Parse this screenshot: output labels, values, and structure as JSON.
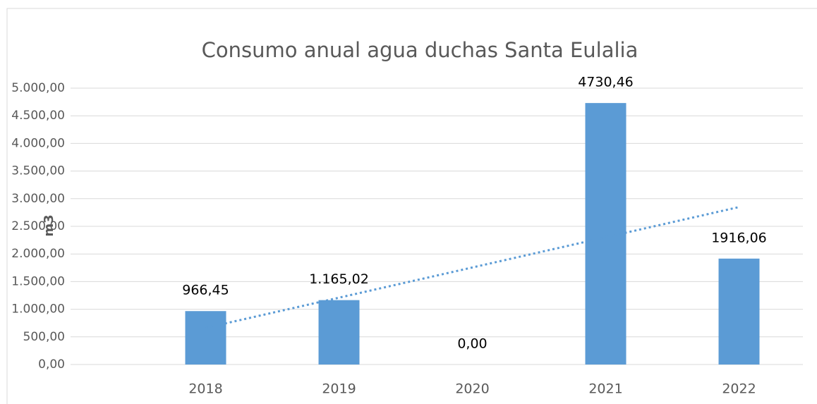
{
  "chart_data": {
    "type": "bar",
    "title": "Consumo anual agua duchas Santa Eulalia",
    "y_label": "m3",
    "categories": [
      "2018",
      "2019",
      "2020",
      "2021",
      "2022"
    ],
    "values": [
      966.45,
      1165.02,
      0,
      4730.46,
      1916.06
    ],
    "value_labels": [
      "966,45",
      "1.165,02",
      "0,00",
      "4730,46",
      "1916,06"
    ],
    "color": "#5b9bd5",
    "trendline": "linear",
    "ylim": [
      0,
      5000
    ],
    "yticks": [
      {
        "value": 0,
        "label": "0,00"
      },
      {
        "value": 500,
        "label": "500,00"
      },
      {
        "value": 1000,
        "label": "1.000,00"
      },
      {
        "value": 1500,
        "label": "1.500,00"
      },
      {
        "value": 2000,
        "label": "2.000,00"
      },
      {
        "value": 2500,
        "label": "2.500,00"
      },
      {
        "value": 3000,
        "label": "3.000,00"
      },
      {
        "value": 3500,
        "label": "3.500,00"
      },
      {
        "value": 4000,
        "label": "4.000,00"
      },
      {
        "value": 4500,
        "label": "4.500,00"
      },
      {
        "value": 5000,
        "label": "5.000,00"
      }
    ],
    "grid": true
  }
}
